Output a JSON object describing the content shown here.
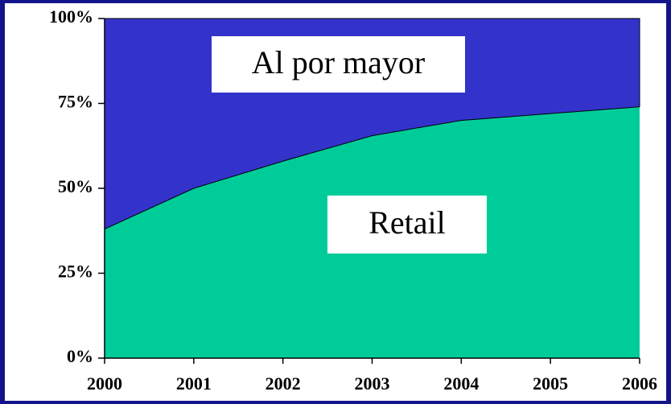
{
  "chart_data": {
    "type": "stacked_area",
    "categories": [
      "2000",
      "2001",
      "2002",
      "2003",
      "2004",
      "2005",
      "2006"
    ],
    "series": [
      {
        "name": "Retail",
        "color": "#00cc99",
        "values": [
          38,
          50,
          58,
          65.5,
          70,
          72,
          74
        ]
      },
      {
        "name": "Al por mayor",
        "color": "#3333cc",
        "values": [
          62,
          50,
          42,
          34.5,
          30,
          28,
          26
        ]
      }
    ],
    "ylim": [
      0,
      100
    ],
    "yticks": [
      {
        "value": 0,
        "label": "0%"
      },
      {
        "value": 25,
        "label": "25%"
      },
      {
        "value": 50,
        "label": "50%"
      },
      {
        "value": 75,
        "label": "75%"
      },
      {
        "value": 100,
        "label": "100%"
      }
    ]
  }
}
